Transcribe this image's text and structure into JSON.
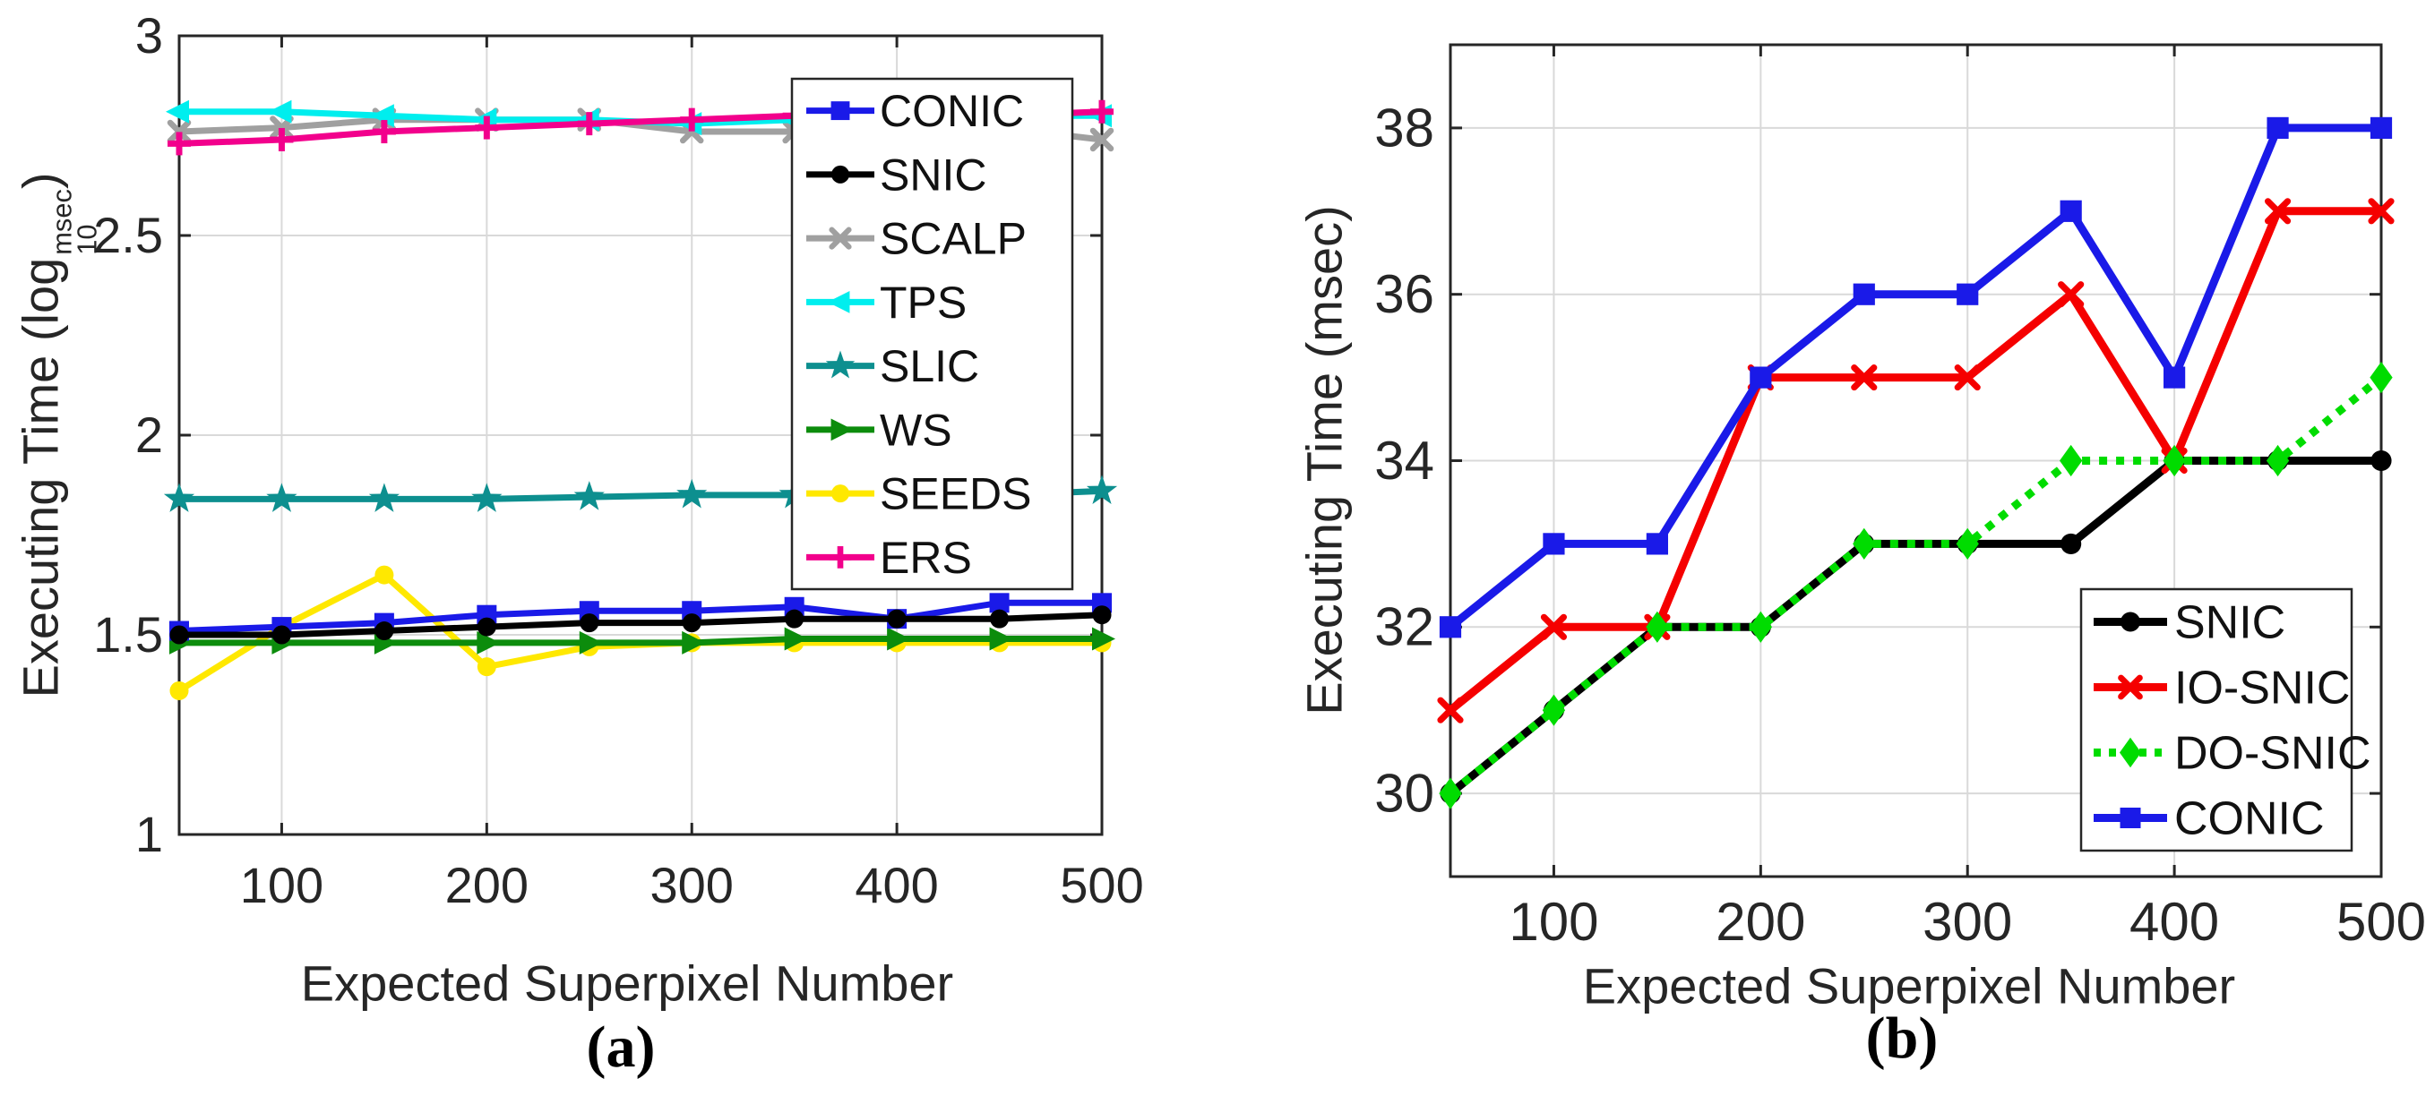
{
  "chart_data": [
    {
      "id": "a",
      "type": "line",
      "caption": "(a)",
      "xlabel": "Expected Superpixel Number",
      "ylabel": {
        "prefix": "Executing Time (log",
        "sub": "10",
        "sup": "msec",
        "suffix": ")"
      },
      "x": [
        50,
        100,
        150,
        200,
        250,
        300,
        350,
        400,
        450,
        500
      ],
      "xlim": [
        50,
        500
      ],
      "ylim": [
        1,
        3
      ],
      "xticks": {
        "values": [
          100,
          200,
          300,
          400,
          500
        ],
        "labels": [
          "100",
          "200",
          "300",
          "400",
          "500"
        ]
      },
      "yticks": {
        "values": [
          1,
          1.5,
          2,
          2.5,
          3
        ],
        "labels": [
          "1",
          "1.5",
          "2",
          "2.5",
          "3"
        ]
      },
      "grid": true,
      "legend_position": "top-right",
      "series": [
        {
          "name": "CONIC",
          "color": "#1a1ae8",
          "marker": "square",
          "line": "solid",
          "values": [
            1.51,
            1.52,
            1.53,
            1.55,
            1.56,
            1.56,
            1.57,
            1.54,
            1.58,
            1.58
          ]
        },
        {
          "name": "SNIC",
          "color": "#000000",
          "marker": "circle",
          "line": "solid",
          "values": [
            1.5,
            1.5,
            1.51,
            1.52,
            1.53,
            1.53,
            1.54,
            1.54,
            1.54,
            1.55
          ]
        },
        {
          "name": "SCALP",
          "color": "#a0a0a0",
          "marker": "x",
          "line": "solid",
          "values": [
            2.76,
            2.77,
            2.79,
            2.79,
            2.79,
            2.76,
            2.76,
            2.77,
            2.77,
            2.74
          ]
        },
        {
          "name": "TPS",
          "color": "#00eeee",
          "marker": "triangle-left",
          "line": "solid",
          "values": [
            2.81,
            2.81,
            2.8,
            2.79,
            2.79,
            2.78,
            2.79,
            2.79,
            2.8,
            2.8
          ]
        },
        {
          "name": "SLIC",
          "color": "#0d8f8f",
          "marker": "star",
          "line": "solid",
          "values": [
            1.84,
            1.84,
            1.84,
            1.84,
            1.845,
            1.85,
            1.85,
            1.85,
            1.85,
            1.86
          ]
        },
        {
          "name": "WS",
          "color": "#0c8c0c",
          "marker": "triangle-right",
          "line": "solid",
          "values": [
            1.48,
            1.48,
            1.48,
            1.48,
            1.48,
            1.48,
            1.49,
            1.49,
            1.49,
            1.49
          ]
        },
        {
          "name": "SEEDS",
          "color": "#ffe800",
          "marker": "circle",
          "line": "solid",
          "values": [
            1.36,
            1.52,
            1.65,
            1.42,
            1.47,
            1.48,
            1.48,
            1.48,
            1.48,
            1.48
          ]
        },
        {
          "name": "ERS",
          "color": "#f2008c",
          "marker": "plus",
          "line": "solid",
          "values": [
            2.73,
            2.74,
            2.76,
            2.77,
            2.78,
            2.79,
            2.8,
            2.8,
            2.8,
            2.81
          ]
        }
      ],
      "draw_order": [
        "SEEDS",
        "WS",
        "CONIC",
        "SNIC",
        "SLIC",
        "SCALP",
        "TPS",
        "ERS"
      ]
    },
    {
      "id": "b",
      "type": "line",
      "caption": "(b)",
      "xlabel": "Expected Superpixel Number",
      "ylabel": {
        "text": "Executing Time (msec)"
      },
      "x": [
        50,
        100,
        150,
        200,
        250,
        300,
        350,
        400,
        450,
        500
      ],
      "xlim": [
        50,
        500
      ],
      "ylim": [
        29,
        39
      ],
      "xticks": {
        "values": [
          100,
          200,
          300,
          400,
          500
        ],
        "labels": [
          "100",
          "200",
          "300",
          "400",
          "500"
        ]
      },
      "yticks": {
        "values": [
          30,
          32,
          34,
          36,
          38
        ],
        "labels": [
          "30",
          "32",
          "34",
          "36",
          "38"
        ]
      },
      "grid": true,
      "legend_position": "bottom-right",
      "series": [
        {
          "name": "SNIC",
          "color": "#000000",
          "marker": "circle",
          "line": "solid",
          "values": [
            30,
            31,
            32,
            32,
            33,
            33,
            33,
            34,
            34,
            34
          ]
        },
        {
          "name": "IO-SNIC",
          "color": "#f50000",
          "marker": "x",
          "line": "solid",
          "values": [
            31,
            32,
            32,
            35,
            35,
            35,
            36,
            34,
            37,
            37
          ]
        },
        {
          "name": "DO-SNIC",
          "color": "#00dc00",
          "marker": "diamond",
          "line": "dotted",
          "values": [
            30,
            31,
            32,
            32,
            33,
            33,
            34,
            34,
            34,
            35
          ]
        },
        {
          "name": "CONIC",
          "color": "#1a1ae8",
          "marker": "square",
          "line": "solid",
          "values": [
            32,
            33,
            33,
            35,
            36,
            36,
            37,
            35,
            38,
            38
          ]
        }
      ],
      "draw_order": [
        "SNIC",
        "IO-SNIC",
        "DO-SNIC",
        "CONIC"
      ]
    }
  ],
  "colors": {
    "frame": "#262626",
    "grid": "#d9d9d9",
    "tick_text": "#262626",
    "legend_text": "#111111",
    "background": "#ffffff"
  }
}
